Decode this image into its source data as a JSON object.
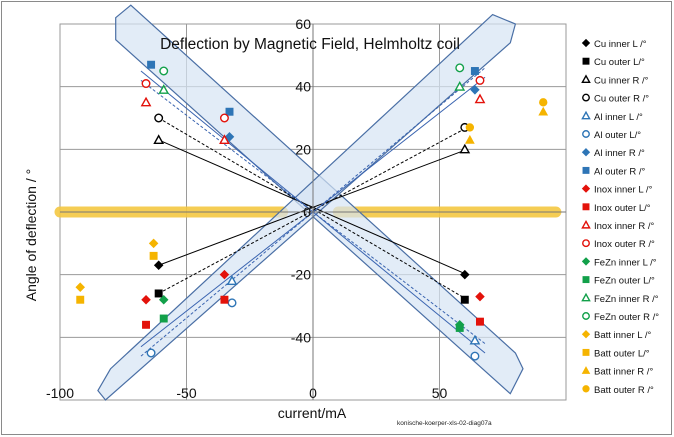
{
  "chart_data": {
    "type": "scatter",
    "title": "Deflection by Magnetic Field, Helmholtz coil",
    "xlabel": "current/mA",
    "ylabel": "Angle of deflection  / °",
    "footnote": "konische-koerper-xls-02-diag07a",
    "xlim": [
      -100,
      100
    ],
    "ylim": [
      -60,
      60
    ],
    "xticks": [
      -100,
      -50,
      0,
      50
    ],
    "xtick_labels": [
      "-100",
      "-50",
      "0",
      "50"
    ],
    "yticks": [
      -40,
      -20,
      0,
      20,
      40,
      60
    ],
    "ytick_labels": [
      "-40",
      "-20",
      "0",
      "20",
      "40",
      "60"
    ],
    "grid": true,
    "legend_position": "right",
    "highlight_band": {
      "y": 0,
      "x_ranges": [
        [
          -100,
          -12
        ],
        [
          10,
          96
        ]
      ],
      "color": "#f5c842"
    },
    "fit_lines": [
      {
        "style": "solid",
        "color": "#000000",
        "points": [
          [
            -61,
            23
          ],
          [
            61,
            -20
          ]
        ]
      },
      {
        "style": "dashed",
        "color": "#000000",
        "points": [
          [
            -61,
            30
          ],
          [
            61,
            -28
          ]
        ]
      },
      {
        "style": "solid",
        "color": "#000000",
        "points": [
          [
            -61,
            -17
          ],
          [
            61,
            20
          ]
        ]
      },
      {
        "style": "dashed",
        "color": "#000000",
        "points": [
          [
            -61,
            -26
          ],
          [
            61,
            27
          ]
        ]
      },
      {
        "style": "solid",
        "color": "#3a64b0",
        "points": [
          [
            -68,
            -43
          ],
          [
            68,
            43
          ]
        ]
      },
      {
        "style": "dashed",
        "color": "#3a64b0",
        "points": [
          [
            -68,
            -46
          ],
          [
            68,
            46
          ]
        ]
      },
      {
        "style": "solid",
        "color": "#3a64b0",
        "points": [
          [
            -68,
            45
          ],
          [
            68,
            -45
          ]
        ]
      },
      {
        "style": "dashed",
        "color": "#3a64b0",
        "points": [
          [
            -68,
            42
          ],
          [
            68,
            -42
          ]
        ]
      }
    ],
    "band_polygons": [
      [
        [
          -78,
          62
        ],
        [
          -72,
          66
        ],
        [
          80,
          -45
        ],
        [
          83,
          -50
        ],
        [
          78,
          -58
        ],
        [
          -78,
          55
        ]
      ],
      [
        [
          -80,
          -50
        ],
        [
          -85,
          -57
        ],
        [
          -82,
          -60
        ],
        [
          78,
          54
        ],
        [
          80,
          60
        ],
        [
          71,
          63
        ]
      ]
    ],
    "series": [
      {
        "name": "Cu  inner L /°",
        "marker": "diamond",
        "filled": true,
        "color": "#000000",
        "points": [
          [
            -61,
            -17
          ],
          [
            60,
            -20
          ]
        ]
      },
      {
        "name": "Cu outer L/°",
        "marker": "square",
        "filled": true,
        "color": "#000000",
        "points": [
          [
            -61,
            -26
          ],
          [
            60,
            -28
          ]
        ]
      },
      {
        "name": "Cu inner R /°",
        "marker": "triangle",
        "filled": false,
        "color": "#000000",
        "points": [
          [
            -61,
            23
          ],
          [
            60,
            20
          ]
        ]
      },
      {
        "name": "Cu outer R /°",
        "marker": "circle",
        "filled": false,
        "color": "#000000",
        "points": [
          [
            -61,
            30
          ],
          [
            60,
            27
          ]
        ]
      },
      {
        "name": "Al  inner L /°",
        "marker": "triangle",
        "filled": false,
        "color": "#2e75b6",
        "points": [
          [
            -32,
            -22
          ],
          [
            64,
            -41
          ]
        ]
      },
      {
        "name": "Al outer L/°",
        "marker": "circle",
        "filled": false,
        "color": "#2e75b6",
        "points": [
          [
            -64,
            -45
          ],
          [
            -32,
            -29
          ],
          [
            64,
            -46
          ]
        ]
      },
      {
        "name": "Al inner R /°",
        "marker": "diamond",
        "filled": true,
        "color": "#2e75b6",
        "points": [
          [
            -33,
            24
          ],
          [
            64,
            39
          ]
        ]
      },
      {
        "name": "Al outer R /°",
        "marker": "square",
        "filled": true,
        "color": "#2e75b6",
        "points": [
          [
            -64,
            47
          ],
          [
            -33,
            32
          ],
          [
            64,
            45
          ]
        ]
      },
      {
        "name": "Inox  inner L /°",
        "marker": "diamond",
        "filled": true,
        "color": "#e3120b",
        "points": [
          [
            -66,
            -28
          ],
          [
            -35,
            -20
          ],
          [
            66,
            -27
          ]
        ]
      },
      {
        "name": "Inox outer L/°",
        "marker": "square",
        "filled": true,
        "color": "#e3120b",
        "points": [
          [
            -66,
            -36
          ],
          [
            -35,
            -28
          ],
          [
            66,
            -35
          ]
        ]
      },
      {
        "name": "Inox inner R /°",
        "marker": "triangle",
        "filled": false,
        "color": "#e3120b",
        "points": [
          [
            -66,
            35
          ],
          [
            -35,
            23
          ],
          [
            66,
            36
          ]
        ]
      },
      {
        "name": "Inox outer R /°",
        "marker": "circle",
        "filled": false,
        "color": "#e3120b",
        "points": [
          [
            -66,
            41
          ],
          [
            -35,
            30
          ],
          [
            66,
            42
          ]
        ]
      },
      {
        "name": "FeZn  inner L /°",
        "marker": "diamond",
        "filled": true,
        "color": "#12a04a",
        "points": [
          [
            -59,
            -28
          ],
          [
            58,
            -36
          ]
        ]
      },
      {
        "name": "FeZn outer L/°",
        "marker": "square",
        "filled": true,
        "color": "#12a04a",
        "points": [
          [
            -59,
            -34
          ],
          [
            58,
            -37
          ]
        ]
      },
      {
        "name": "FeZn inner R /°",
        "marker": "triangle",
        "filled": false,
        "color": "#12a04a",
        "points": [
          [
            -59,
            39
          ],
          [
            58,
            40
          ]
        ]
      },
      {
        "name": "FeZn outer R /°",
        "marker": "circle",
        "filled": false,
        "color": "#12a04a",
        "points": [
          [
            -59,
            45
          ],
          [
            58,
            46
          ]
        ]
      },
      {
        "name": "Batt  inner L /°",
        "marker": "diamond",
        "filled": true,
        "color": "#f5b400",
        "points": [
          [
            -92,
            -24
          ],
          [
            -63,
            -10
          ]
        ]
      },
      {
        "name": "Batt outer L/°",
        "marker": "square",
        "filled": true,
        "color": "#f5b400",
        "points": [
          [
            -92,
            -28
          ],
          [
            -63,
            -14
          ]
        ]
      },
      {
        "name": "Batt inner R /°",
        "marker": "triangle",
        "filled": true,
        "color": "#f5b400",
        "points": [
          [
            62,
            23
          ],
          [
            91,
            32
          ]
        ]
      },
      {
        "name": "Batt outer R /°",
        "marker": "circle",
        "filled": true,
        "color": "#f5b400",
        "points": [
          [
            62,
            27
          ],
          [
            91,
            35
          ]
        ]
      }
    ]
  }
}
